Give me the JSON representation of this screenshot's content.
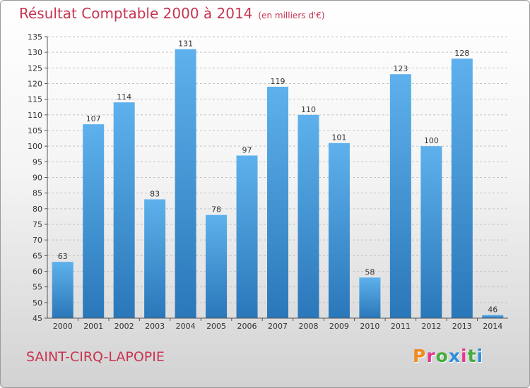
{
  "header": {
    "title": "Résultat Comptable 2000 à 2014",
    "subtitle": "(en milliers d'€)"
  },
  "footer": {
    "city": "SAINT-CIRQ-LAPOPIE",
    "brand": "Proxiti"
  },
  "colors": {
    "title": "#c8344f",
    "bar_top": "#5eb1ec",
    "bar_bottom": "#2a77b9",
    "brand_letters": [
      "#f08a1c",
      "#e23a8f",
      "#46ac3e",
      "#2b8fd8",
      "#e23a8f",
      "#46ac3e",
      "#2b8fd8"
    ]
  },
  "chart_data": {
    "type": "bar",
    "title": "Résultat Comptable 2000 à 2014",
    "subtitle": "(en milliers d'€)",
    "categories": [
      "2000",
      "2001",
      "2002",
      "2003",
      "2004",
      "2005",
      "2006",
      "2007",
      "2008",
      "2009",
      "2010",
      "2011",
      "2012",
      "2013",
      "2014"
    ],
    "values": [
      63,
      107,
      114,
      83,
      131,
      78,
      97,
      119,
      110,
      101,
      58,
      123,
      100,
      128,
      46
    ],
    "ylim": [
      45,
      135
    ],
    "yticks": [
      45,
      50,
      55,
      60,
      65,
      70,
      75,
      80,
      85,
      90,
      95,
      100,
      105,
      110,
      115,
      120,
      125,
      130,
      135
    ],
    "grid": "y-dashed",
    "data_labels": true
  }
}
